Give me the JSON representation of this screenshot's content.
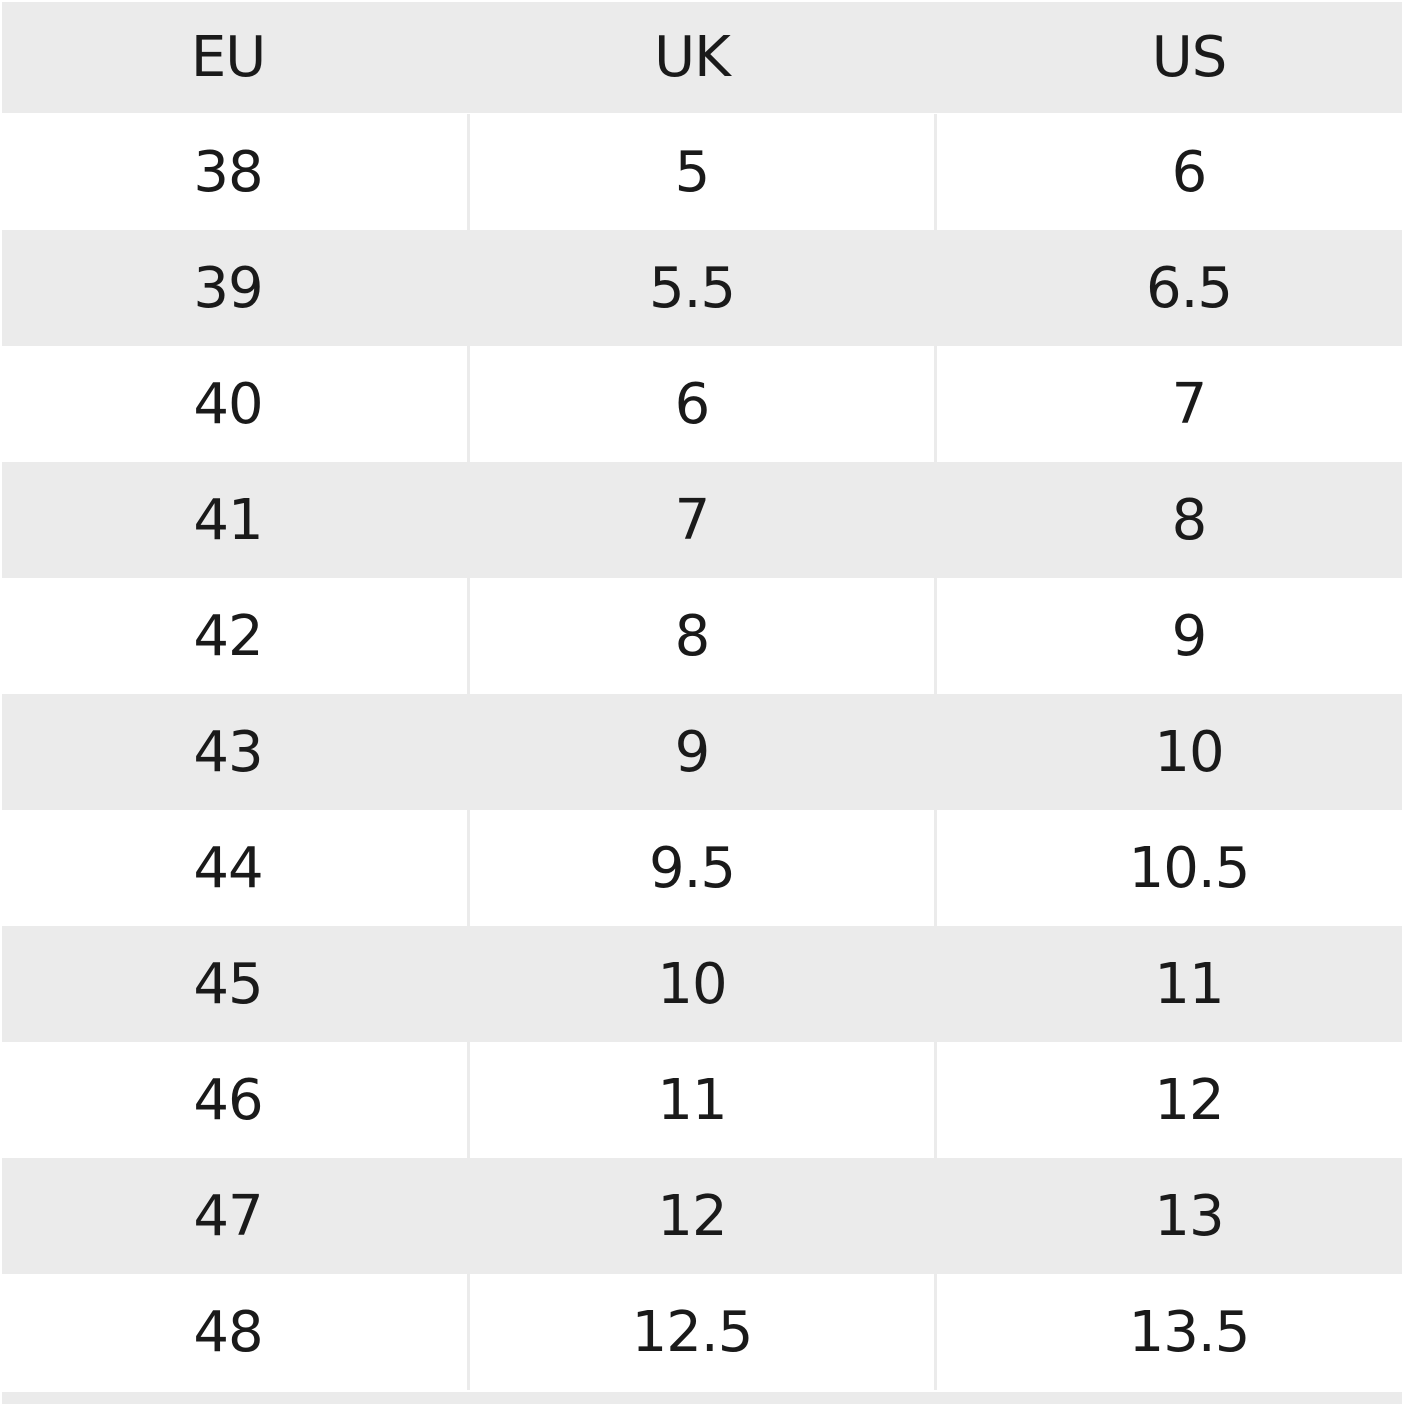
{
  "table": {
    "header": [
      "EU",
      "UK",
      "US"
    ],
    "rows": [
      [
        38,
        5,
        6
      ],
      [
        39,
        5.5,
        6.5
      ],
      [
        40,
        6,
        7
      ],
      [
        41,
        7,
        8
      ],
      [
        42,
        8,
        9
      ],
      [
        43,
        9,
        10
      ],
      [
        44,
        9.5,
        10.5
      ],
      [
        45,
        10,
        11
      ],
      [
        46,
        11,
        12
      ],
      [
        47,
        12,
        13
      ],
      [
        48,
        12.5,
        13.5
      ]
    ]
  }
}
